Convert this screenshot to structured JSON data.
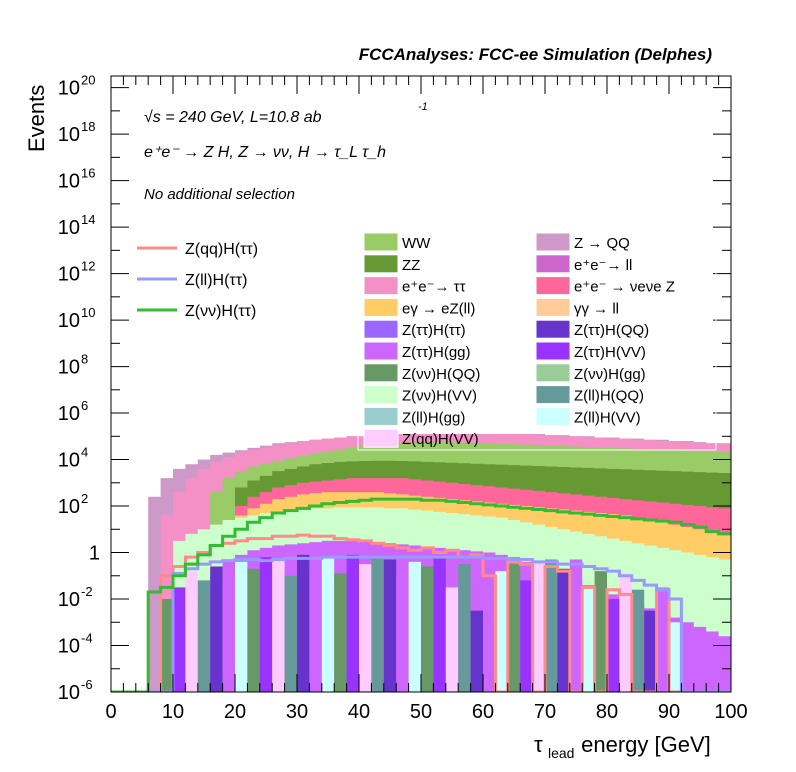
{
  "chart_data": {
    "type": "area",
    "title": "FCCAnalyses: FCC-ee Simulation (Delphes)",
    "xlabel_main": "τ",
    "xlabel_sub": "lead",
    "xlabel_rest": " energy [GeV]",
    "ylabel": "Events",
    "xlim": [
      0,
      100
    ],
    "ylim_log10": [
      -6,
      20.5
    ],
    "log_y": true,
    "grid": false,
    "x_ticks": [
      "0",
      "10",
      "20",
      "30",
      "40",
      "50",
      "60",
      "70",
      "80",
      "90",
      "100"
    ],
    "y_ticks": [
      {
        "base": "10",
        "exp": "-6",
        "e": -6
      },
      {
        "base": "10",
        "exp": "-4",
        "e": -4
      },
      {
        "base": "10",
        "exp": "-2",
        "e": -2
      },
      {
        "base": "1",
        "exp": "",
        "e": 0
      },
      {
        "base": "10",
        "exp": "2",
        "e": 2
      },
      {
        "base": "10",
        "exp": "4",
        "e": 4
      },
      {
        "base": "10",
        "exp": "6",
        "e": 6
      },
      {
        "base": "10",
        "exp": "8",
        "e": 8
      },
      {
        "base": "10",
        "exp": "10",
        "e": 10
      },
      {
        "base": "10",
        "exp": "12",
        "e": 12
      },
      {
        "base": "10",
        "exp": "14",
        "e": 14
      },
      {
        "base": "10",
        "exp": "16",
        "e": 16
      },
      {
        "base": "10",
        "exp": "18",
        "e": 18
      },
      {
        "base": "10",
        "exp": "20",
        "e": 20
      }
    ],
    "annotations": {
      "energy": "√s = 240 GeV, L=10.8 ab",
      "energy_exp": "-1",
      "process": "e⁺e⁻ → Z H, Z → νν, H → τ_L τ_h",
      "selection": "No additional selection"
    },
    "stack_layers": [
      {
        "name": "W W / Z → QQ envelope",
        "color": "#cc99c9",
        "log_top": [
          -6,
          -6,
          -6,
          2.4,
          3.2,
          3.6,
          3.8,
          4.0,
          4.2,
          4.3,
          4.4,
          4.5,
          4.6,
          4.7,
          4.75,
          4.8,
          4.85,
          4.9,
          4.95,
          5.0,
          5.0,
          5.05,
          5.05,
          5.1,
          5.1,
          5.1,
          5.1,
          5.1,
          5.1,
          5.1,
          5.1,
          5.1,
          5.1,
          5.1,
          5.1,
          5.05,
          5.05,
          5.0,
          5.0,
          4.95,
          4.95,
          4.9,
          4.9,
          4.85,
          4.85,
          4.8,
          4.8,
          4.75,
          4.7,
          4.7
        ]
      },
      {
        "name": "e+e- → ττ",
        "color": "#f590c6",
        "log_top": [
          -6,
          -6,
          -6,
          -6,
          1.6,
          2.6,
          3.2,
          3.6,
          3.9,
          4.1,
          4.3,
          4.4,
          4.5,
          4.6,
          4.7,
          4.8,
          4.85,
          4.9,
          4.95,
          5.0,
          5.0,
          5.05,
          5.05,
          5.1,
          5.1,
          5.1,
          5.1,
          5.1,
          5.1,
          5.1,
          5.1,
          5.1,
          5.1,
          5.1,
          5.05,
          5.05,
          5.0,
          5.0,
          4.95,
          4.95,
          4.9,
          4.9,
          4.85,
          4.85,
          4.8,
          4.8,
          4.75,
          4.7,
          4.7,
          4.7
        ]
      },
      {
        "name": "WW",
        "color": "#99cc66",
        "log_top": [
          -6,
          -6,
          -6,
          -6,
          -6,
          -6,
          -6,
          -6,
          2.6,
          3.2,
          3.5,
          3.7,
          3.85,
          3.95,
          4.05,
          4.15,
          4.25,
          4.35,
          4.45,
          4.55,
          4.6,
          4.65,
          4.7,
          4.72,
          4.74,
          4.75,
          4.75,
          4.74,
          4.73,
          4.72,
          4.7,
          4.68,
          4.66,
          4.64,
          4.62,
          4.6,
          4.58,
          4.56,
          4.54,
          4.52,
          4.5,
          4.48,
          4.46,
          4.44,
          4.42,
          4.4,
          4.38,
          4.36,
          4.34,
          4.32
        ]
      },
      {
        "name": "ZZ",
        "color": "#669933",
        "log_top": [
          -6,
          -6,
          -6,
          -6,
          -6,
          -6,
          -6,
          -6,
          -6,
          -6,
          2.8,
          3.1,
          3.3,
          3.5,
          3.6,
          3.7,
          3.8,
          3.85,
          3.9,
          3.92,
          3.94,
          3.95,
          3.95,
          3.94,
          3.92,
          3.9,
          3.88,
          3.86,
          3.84,
          3.82,
          3.8,
          3.78,
          3.76,
          3.74,
          3.72,
          3.7,
          3.68,
          3.66,
          3.64,
          3.62,
          3.6,
          3.58,
          3.56,
          3.54,
          3.52,
          3.5,
          3.48,
          3.46,
          3.44,
          3.42
        ]
      },
      {
        "name": "e+e- → νeνe Z",
        "color": "#ff6699",
        "log_top": [
          -6,
          -6,
          -6,
          -6,
          -6,
          -6,
          -6,
          -6,
          -6,
          -6,
          2.0,
          2.4,
          2.6,
          2.8,
          2.9,
          3.0,
          3.05,
          3.1,
          3.15,
          3.2,
          3.2,
          3.2,
          3.2,
          3.2,
          3.15,
          3.1,
          3.05,
          3.0,
          2.95,
          2.9,
          2.85,
          2.8,
          2.75,
          2.7,
          2.65,
          2.6,
          2.55,
          2.5,
          2.45,
          2.4,
          2.35,
          2.3,
          2.25,
          2.2,
          2.15,
          2.1,
          2.05,
          2.0,
          1.95,
          1.9
        ]
      },
      {
        "name": "eγ → eZ(ll)",
        "color": "#ffcc66",
        "log_top": [
          -6,
          -6,
          -6,
          -6,
          -6,
          -6,
          -6,
          -6,
          -6,
          -6,
          1.6,
          1.9,
          2.1,
          2.3,
          2.4,
          2.5,
          2.55,
          2.6,
          2.6,
          2.6,
          2.6,
          2.6,
          2.55,
          2.5,
          2.45,
          2.4,
          2.35,
          2.3,
          2.25,
          2.2,
          2.15,
          2.1,
          2.05,
          2.0,
          1.95,
          1.9,
          1.85,
          1.8,
          1.75,
          1.7,
          1.65,
          1.6,
          1.5,
          1.4,
          1.3,
          1.2,
          1.1,
          1.0,
          0.9,
          0.8
        ]
      },
      {
        "name": "Z(νν)H(VV)",
        "color": "#ccffcc",
        "log_top": [
          -6,
          -6,
          -6,
          -6,
          -6,
          0.5,
          0.8,
          1.0,
          1.2,
          1.4,
          1.5,
          1.6,
          1.7,
          1.75,
          1.8,
          1.85,
          1.9,
          1.9,
          1.95,
          1.95,
          1.95,
          1.95,
          1.9,
          1.9,
          1.85,
          1.8,
          1.75,
          1.7,
          1.65,
          1.6,
          1.55,
          1.5,
          1.4,
          1.3,
          1.2,
          1.1,
          1.0,
          0.9,
          0.8,
          0.7,
          0.6,
          0.5,
          0.4,
          0.3,
          0.2,
          0.1,
          0.0,
          -0.1,
          -0.2,
          -0.3
        ]
      },
      {
        "name": "Z(ττ)H(gg)",
        "color": "#cc66ff",
        "log_top": [
          -6,
          -6,
          -6,
          -6,
          -6,
          -6,
          -2.5,
          -1.8,
          -1.0,
          -0.4,
          -0.1,
          0.1,
          0.2,
          0.3,
          0.35,
          0.4,
          0.45,
          0.5,
          0.5,
          0.5,
          0.5,
          0.45,
          0.4,
          0.35,
          0.3,
          0.25,
          0.2,
          0.15,
          0.1,
          0.05,
          0.0,
          -0.1,
          -0.2,
          -0.4,
          -0.6,
          -0.8,
          -1.0,
          -1.2,
          -1.4,
          -1.6,
          -1.8,
          -2.0,
          -2.2,
          -2.4,
          -2.6,
          -2.8,
          -3.0,
          -3.2,
          -3.4,
          -3.6
        ]
      }
    ],
    "lines": [
      {
        "name": "Z(qq)H(ττ)",
        "color": "#ff8a8a",
        "log_y": [
          -6,
          -6,
          -6,
          -6,
          -1.0,
          -0.6,
          -0.2,
          0.0,
          0.3,
          0.4,
          0.5,
          0.6,
          0.6,
          0.7,
          0.7,
          0.75,
          0.7,
          0.7,
          0.6,
          0.55,
          0.5,
          0.4,
          0.3,
          0.2,
          0.1,
          0.2,
          0.0,
          0.1,
          -0.2,
          -0.1,
          -1.0,
          -6,
          -0.4,
          -0.5,
          -6,
          -0.6,
          -0.8,
          -6,
          -1.5,
          -6,
          -1.6,
          -1.8,
          -6,
          -6,
          -1.6,
          -6,
          -6,
          -6,
          -6,
          -6
        ]
      },
      {
        "name": "Z(ll)H(ττ)",
        "color": "#9999ff",
        "log_y": [
          -6,
          -6,
          -6,
          -6,
          -6,
          -0.9,
          -0.7,
          -0.5,
          -0.4,
          -0.35,
          -0.3,
          -0.3,
          -0.35,
          -0.3,
          -0.25,
          -0.25,
          -0.25,
          -0.2,
          -0.2,
          -0.2,
          -0.2,
          -0.2,
          -0.2,
          -0.2,
          -0.2,
          -0.2,
          -0.2,
          -0.2,
          -0.2,
          -0.2,
          -0.25,
          -0.25,
          -0.3,
          -0.3,
          -0.4,
          -0.4,
          -0.5,
          -0.5,
          -0.6,
          -0.7,
          -0.8,
          -1.0,
          -1.2,
          -1.4,
          -1.6,
          -2.0,
          -6,
          -6,
          -6,
          -6
        ]
      },
      {
        "name": "Z(νν)H(ττ)",
        "color": "#33bb33",
        "log_y": [
          -6,
          -6,
          -6,
          -1.7,
          -1.5,
          -1.0,
          -0.5,
          -0.1,
          0.3,
          0.7,
          1.0,
          1.3,
          1.5,
          1.7,
          1.8,
          1.9,
          2.0,
          2.1,
          2.15,
          2.2,
          2.25,
          2.3,
          2.3,
          2.3,
          2.3,
          2.25,
          2.25,
          2.2,
          2.15,
          2.1,
          2.05,
          2.0,
          1.95,
          1.9,
          1.85,
          1.8,
          1.75,
          1.7,
          1.65,
          1.6,
          1.55,
          1.5,
          1.45,
          1.4,
          1.35,
          1.3,
          1.2,
          1.1,
          0.9,
          0.8
        ]
      }
    ],
    "legend_lines": [
      {
        "label": "Z(qq)H(ττ)",
        "color": "#ff8a8a"
      },
      {
        "label": "Z(ll)H(ττ)",
        "color": "#9999ff"
      },
      {
        "label": "Z(νν)H(ττ)",
        "color": "#33bb33"
      }
    ],
    "legend_stack_left": [
      {
        "label": "WW",
        "color": "#99cc66"
      },
      {
        "label": "ZZ",
        "color": "#669933"
      },
      {
        "label": "e⁺e⁻→ ττ",
        "color": "#f590c6"
      },
      {
        "label": "eγ → eZ(ll)",
        "color": "#ffcc66"
      },
      {
        "label": "Z(ττ)H(ττ)",
        "color": "#9966ff"
      },
      {
        "label": "Z(ττ)H(gg)",
        "color": "#cc66ff"
      },
      {
        "label": "Z(νν)H(QQ)",
        "color": "#669966"
      },
      {
        "label": "Z(νν)H(VV)",
        "color": "#ccffcc"
      },
      {
        "label": "Z(ll)H(gg)",
        "color": "#99cccc"
      },
      {
        "label": "Z(qq)H(VV)",
        "color": "#ffccff"
      }
    ],
    "legend_stack_right": [
      {
        "label": "Z → QQ",
        "color": "#cc99c9"
      },
      {
        "label": "e⁺e⁻→ ll",
        "color": "#cc66cc"
      },
      {
        "label": "e⁺e⁻ → νeνe Z",
        "color": "#ff6699"
      },
      {
        "label": "γγ → ll",
        "color": "#ffcc99"
      },
      {
        "label": "Z(ττ)H(QQ)",
        "color": "#6633cc"
      },
      {
        "label": "Z(ττ)H(VV)",
        "color": "#9933ff"
      },
      {
        "label": "Z(νν)H(gg)",
        "color": "#99cc99"
      },
      {
        "label": "Z(ll)H(QQ)",
        "color": "#669999"
      },
      {
        "label": "Z(ll)H(VV)",
        "color": "#ccffff"
      }
    ]
  }
}
